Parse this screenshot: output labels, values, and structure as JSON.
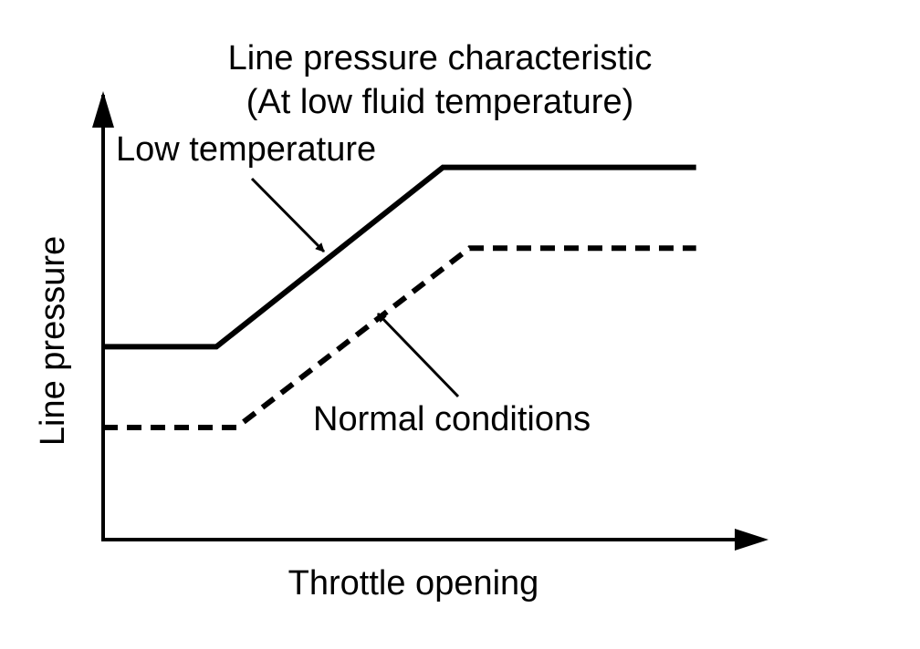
{
  "chart_data": {
    "type": "line",
    "title": "Line pressure characteristic",
    "subtitle": "(At low fluid temperature)",
    "xlabel": "Throttle opening",
    "ylabel": "Line pressure",
    "grid": false,
    "axis_ticks": false,
    "xlim": [
      0,
      100
    ],
    "ylim": [
      0,
      100
    ],
    "series": [
      {
        "name": "Low temperature",
        "style": "solid",
        "x": [
          0,
          17,
          51,
          89
        ],
        "y": [
          43,
          43,
          83,
          83
        ]
      },
      {
        "name": "Normal conditions",
        "style": "dashed",
        "x": [
          0,
          20,
          55,
          89
        ],
        "y": [
          25,
          25,
          65,
          65
        ]
      }
    ],
    "annotations": [
      {
        "text": "Low temperature",
        "series": "Low temperature"
      },
      {
        "text": "Normal conditions",
        "series": "Normal conditions"
      }
    ],
    "colors": {
      "line": "#000000",
      "background": "#ffffff"
    }
  }
}
